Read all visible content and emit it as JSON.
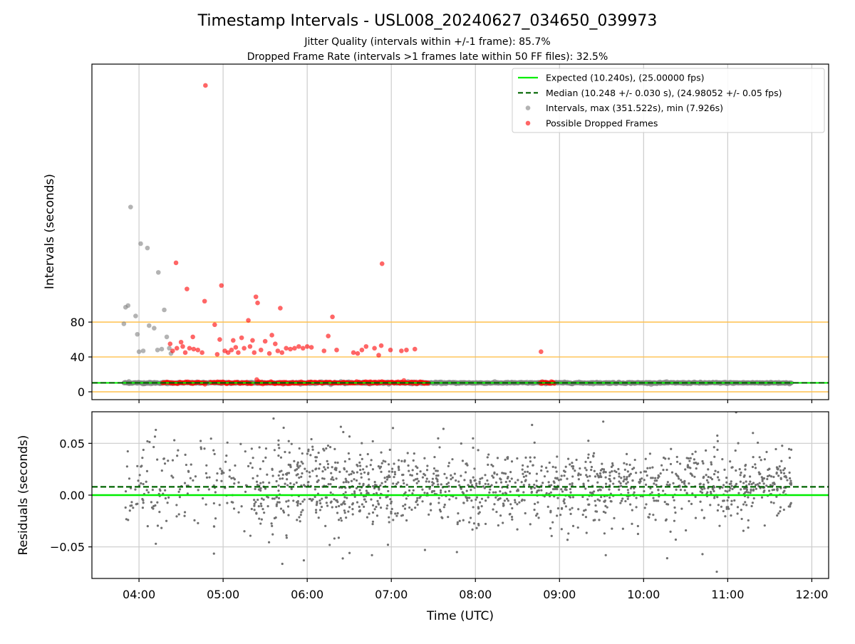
{
  "figure": {
    "title": "Timestamp Intervals - USL008_20240627_034650_039973",
    "subtitle_1": "Jitter Quality (intervals within +/-1 frame): 85.7%",
    "subtitle_2": "Dropped Frame Rate (intervals >1 frames late within 50 FF files): 32.5%"
  },
  "colors": {
    "expected": "#00ee00",
    "median": "#006400",
    "intervals": "#808080",
    "dropped": "#ff0000",
    "threshold": "#ffc04d",
    "grid": "#cccccc",
    "residuals": "#707070"
  },
  "chart_data": [
    {
      "id": "intervals",
      "type": "scatter",
      "xlabel": "",
      "ylabel": "Intervals (seconds)",
      "x_unit": "hours UTC",
      "xlim": [
        3.44,
        12.2
      ],
      "ylim": [
        -9,
        376
      ],
      "y_ticks": [
        0,
        40,
        80
      ],
      "y_tick_labels": [
        "0",
        "40",
        "80"
      ],
      "x_ticks": [
        4,
        5,
        6,
        7,
        8,
        9,
        10,
        11,
        12
      ],
      "threshold_lines": [
        0,
        40,
        80
      ],
      "grid": "vertical",
      "legend_position": "upper-right",
      "legend": [
        {
          "label": "Expected (10.240s), (25.00000 fps)",
          "kind": "solid-line",
          "color": "#00ee00"
        },
        {
          "label": "Median (10.248 +/- 0.030 s), (24.98052 +/- 0.05 fps)",
          "kind": "dashed-line",
          "color": "#006400"
        },
        {
          "label": "Intervals, max (351.522s), min (7.926s)",
          "kind": "dot",
          "color": "#808080"
        },
        {
          "label": "Possible Dropped Frames",
          "kind": "dot",
          "color": "#ff0000"
        }
      ],
      "expected_value": 10.24,
      "median_value": 10.248,
      "series": [
        {
          "name": "Intervals, max (351.522s), min (7.926s)",
          "color": "#808080",
          "dense_band": {
            "x_range": [
              3.82,
              11.76
            ],
            "y": 10.25
          },
          "points": [
            [
              3.82,
              78
            ],
            [
              3.84,
              97
            ],
            [
              3.87,
              99
            ],
            [
              3.86,
              10
            ],
            [
              3.88,
              12
            ],
            [
              3.9,
              212
            ],
            [
              3.96,
              87
            ],
            [
              3.98,
              66
            ],
            [
              4.02,
              170
            ],
            [
              4.0,
              46
            ],
            [
              4.05,
              47
            ],
            [
              4.1,
              165
            ],
            [
              4.12,
              76
            ],
            [
              4.18,
              73
            ],
            [
              4.22,
              48
            ],
            [
              4.27,
              49
            ],
            [
              4.23,
              137
            ],
            [
              4.3,
              94
            ],
            [
              4.33,
              63
            ],
            [
              4.36,
              50
            ],
            [
              4.38,
              44
            ],
            [
              4.06,
              9
            ],
            [
              4.14,
              9
            ],
            [
              4.2,
              10
            ],
            [
              4.26,
              10
            ],
            [
              4.34,
              9
            ],
            [
              6.28,
              8
            ],
            [
              6.4,
              12
            ],
            [
              6.45,
              9
            ],
            [
              7.0,
              10
            ],
            [
              7.2,
              12
            ],
            [
              7.3,
              9
            ]
          ]
        },
        {
          "name": "Possible Dropped Frames",
          "color": "#ff0000",
          "baseline_runs": [
            {
              "x_range": [
                4.28,
                4.8
              ],
              "y": 10.4
            },
            {
              "x_range": [
                4.85,
                5.35
              ],
              "y": 10.4
            },
            {
              "x_range": [
                5.4,
                7.45
              ],
              "y": 10.4
            },
            {
              "x_range": [
                8.77,
                8.95
              ],
              "y": 10.4
            }
          ],
          "points": [
            [
              4.79,
              351.5
            ],
            [
              4.44,
              148
            ],
            [
              4.57,
              118
            ],
            [
              4.78,
              104
            ],
            [
              4.98,
              122
            ],
            [
              4.9,
              77
            ],
            [
              4.37,
              55
            ],
            [
              4.4,
              47
            ],
            [
              4.45,
              50
            ],
            [
              4.5,
              57
            ],
            [
              4.52,
              52
            ],
            [
              4.55,
              45
            ],
            [
              4.6,
              50
            ],
            [
              4.65,
              49
            ],
            [
              4.7,
              48
            ],
            [
              4.75,
              45
            ],
            [
              4.64,
              63
            ],
            [
              4.93,
              43
            ],
            [
              4.96,
              60
            ],
            [
              5.02,
              47
            ],
            [
              5.06,
              45
            ],
            [
              5.1,
              48
            ],
            [
              5.12,
              59
            ],
            [
              5.15,
              51
            ],
            [
              5.18,
              45
            ],
            [
              5.22,
              62
            ],
            [
              5.25,
              50
            ],
            [
              5.3,
              82
            ],
            [
              5.32,
              52
            ],
            [
              5.35,
              59
            ],
            [
              5.39,
              109
            ],
            [
              5.41,
              102
            ],
            [
              5.37,
              45
            ],
            [
              5.45,
              48
            ],
            [
              5.5,
              58
            ],
            [
              5.55,
              44
            ],
            [
              5.58,
              65
            ],
            [
              5.62,
              55
            ],
            [
              5.65,
              47
            ],
            [
              5.68,
              96
            ],
            [
              5.7,
              45
            ],
            [
              5.75,
              50
            ],
            [
              5.8,
              49
            ],
            [
              5.85,
              50
            ],
            [
              5.9,
              52
            ],
            [
              5.95,
              50
            ],
            [
              6.0,
              52
            ],
            [
              6.05,
              51
            ],
            [
              6.2,
              47
            ],
            [
              6.25,
              64
            ],
            [
              6.3,
              86
            ],
            [
              6.35,
              48
            ],
            [
              6.55,
              45
            ],
            [
              6.6,
              44
            ],
            [
              6.65,
              48
            ],
            [
              6.7,
              52
            ],
            [
              6.8,
              50
            ],
            [
              6.85,
              42
            ],
            [
              6.88,
              53
            ],
            [
              6.89,
              147
            ],
            [
              6.99,
              48
            ],
            [
              7.12,
              47
            ],
            [
              7.18,
              48
            ],
            [
              7.28,
              49
            ],
            [
              8.78,
              46
            ],
            [
              5.4,
              14
            ],
            [
              7.15,
              13
            ]
          ]
        }
      ]
    },
    {
      "id": "residuals",
      "type": "scatter",
      "xlabel": "Time (UTC)",
      "ylabel": "Residuals (seconds)",
      "xlim": [
        3.44,
        12.2
      ],
      "ylim": [
        -0.0805,
        0.0805
      ],
      "y_ticks": [
        0.05,
        0.0,
        -0.05
      ],
      "y_tick_labels": [
        "0.05",
        "0.00",
        "−0.05"
      ],
      "x_ticks": [
        4,
        5,
        6,
        7,
        8,
        9,
        10,
        11,
        12
      ],
      "x_tick_labels": [
        "04:00",
        "05:00",
        "06:00",
        "07:00",
        "08:00",
        "09:00",
        "10:00",
        "11:00",
        "12:00"
      ],
      "grid": "both",
      "expected_residual": 0.0,
      "median_residual": 0.008,
      "series": [
        {
          "name": "Residuals",
          "color": "#707070",
          "x_range": [
            3.82,
            11.76
          ],
          "mean": 0.008,
          "std": 0.02,
          "n_points": 1700,
          "outliers": [
            [
              3.84,
              -0.012
            ],
            [
              3.87,
              -0.024
            ],
            [
              3.98,
              0.028
            ],
            [
              4.04,
              0.036
            ],
            [
              4.1,
              0.052
            ],
            [
              4.2,
              0.063
            ],
            [
              4.2,
              -0.047
            ],
            [
              4.42,
              0.053
            ],
            [
              5.6,
              0.074
            ],
            [
              5.72,
              0.065
            ],
            [
              6.05,
              0.054
            ],
            [
              6.4,
              0.066
            ],
            [
              6.78,
              0.052
            ],
            [
              6.77,
              -0.058
            ],
            [
              6.96,
              -0.048
            ],
            [
              7.4,
              -0.053
            ],
            [
              7.62,
              0.064
            ],
            [
              7.78,
              -0.055
            ],
            [
              9.52,
              0.071
            ],
            [
              9.55,
              -0.058
            ],
            [
              10.28,
              -0.061
            ],
            [
              10.7,
              -0.057
            ],
            [
              10.87,
              -0.074
            ],
            [
              11.1,
              0.08
            ],
            [
              11.3,
              0.06
            ]
          ]
        }
      ]
    }
  ]
}
